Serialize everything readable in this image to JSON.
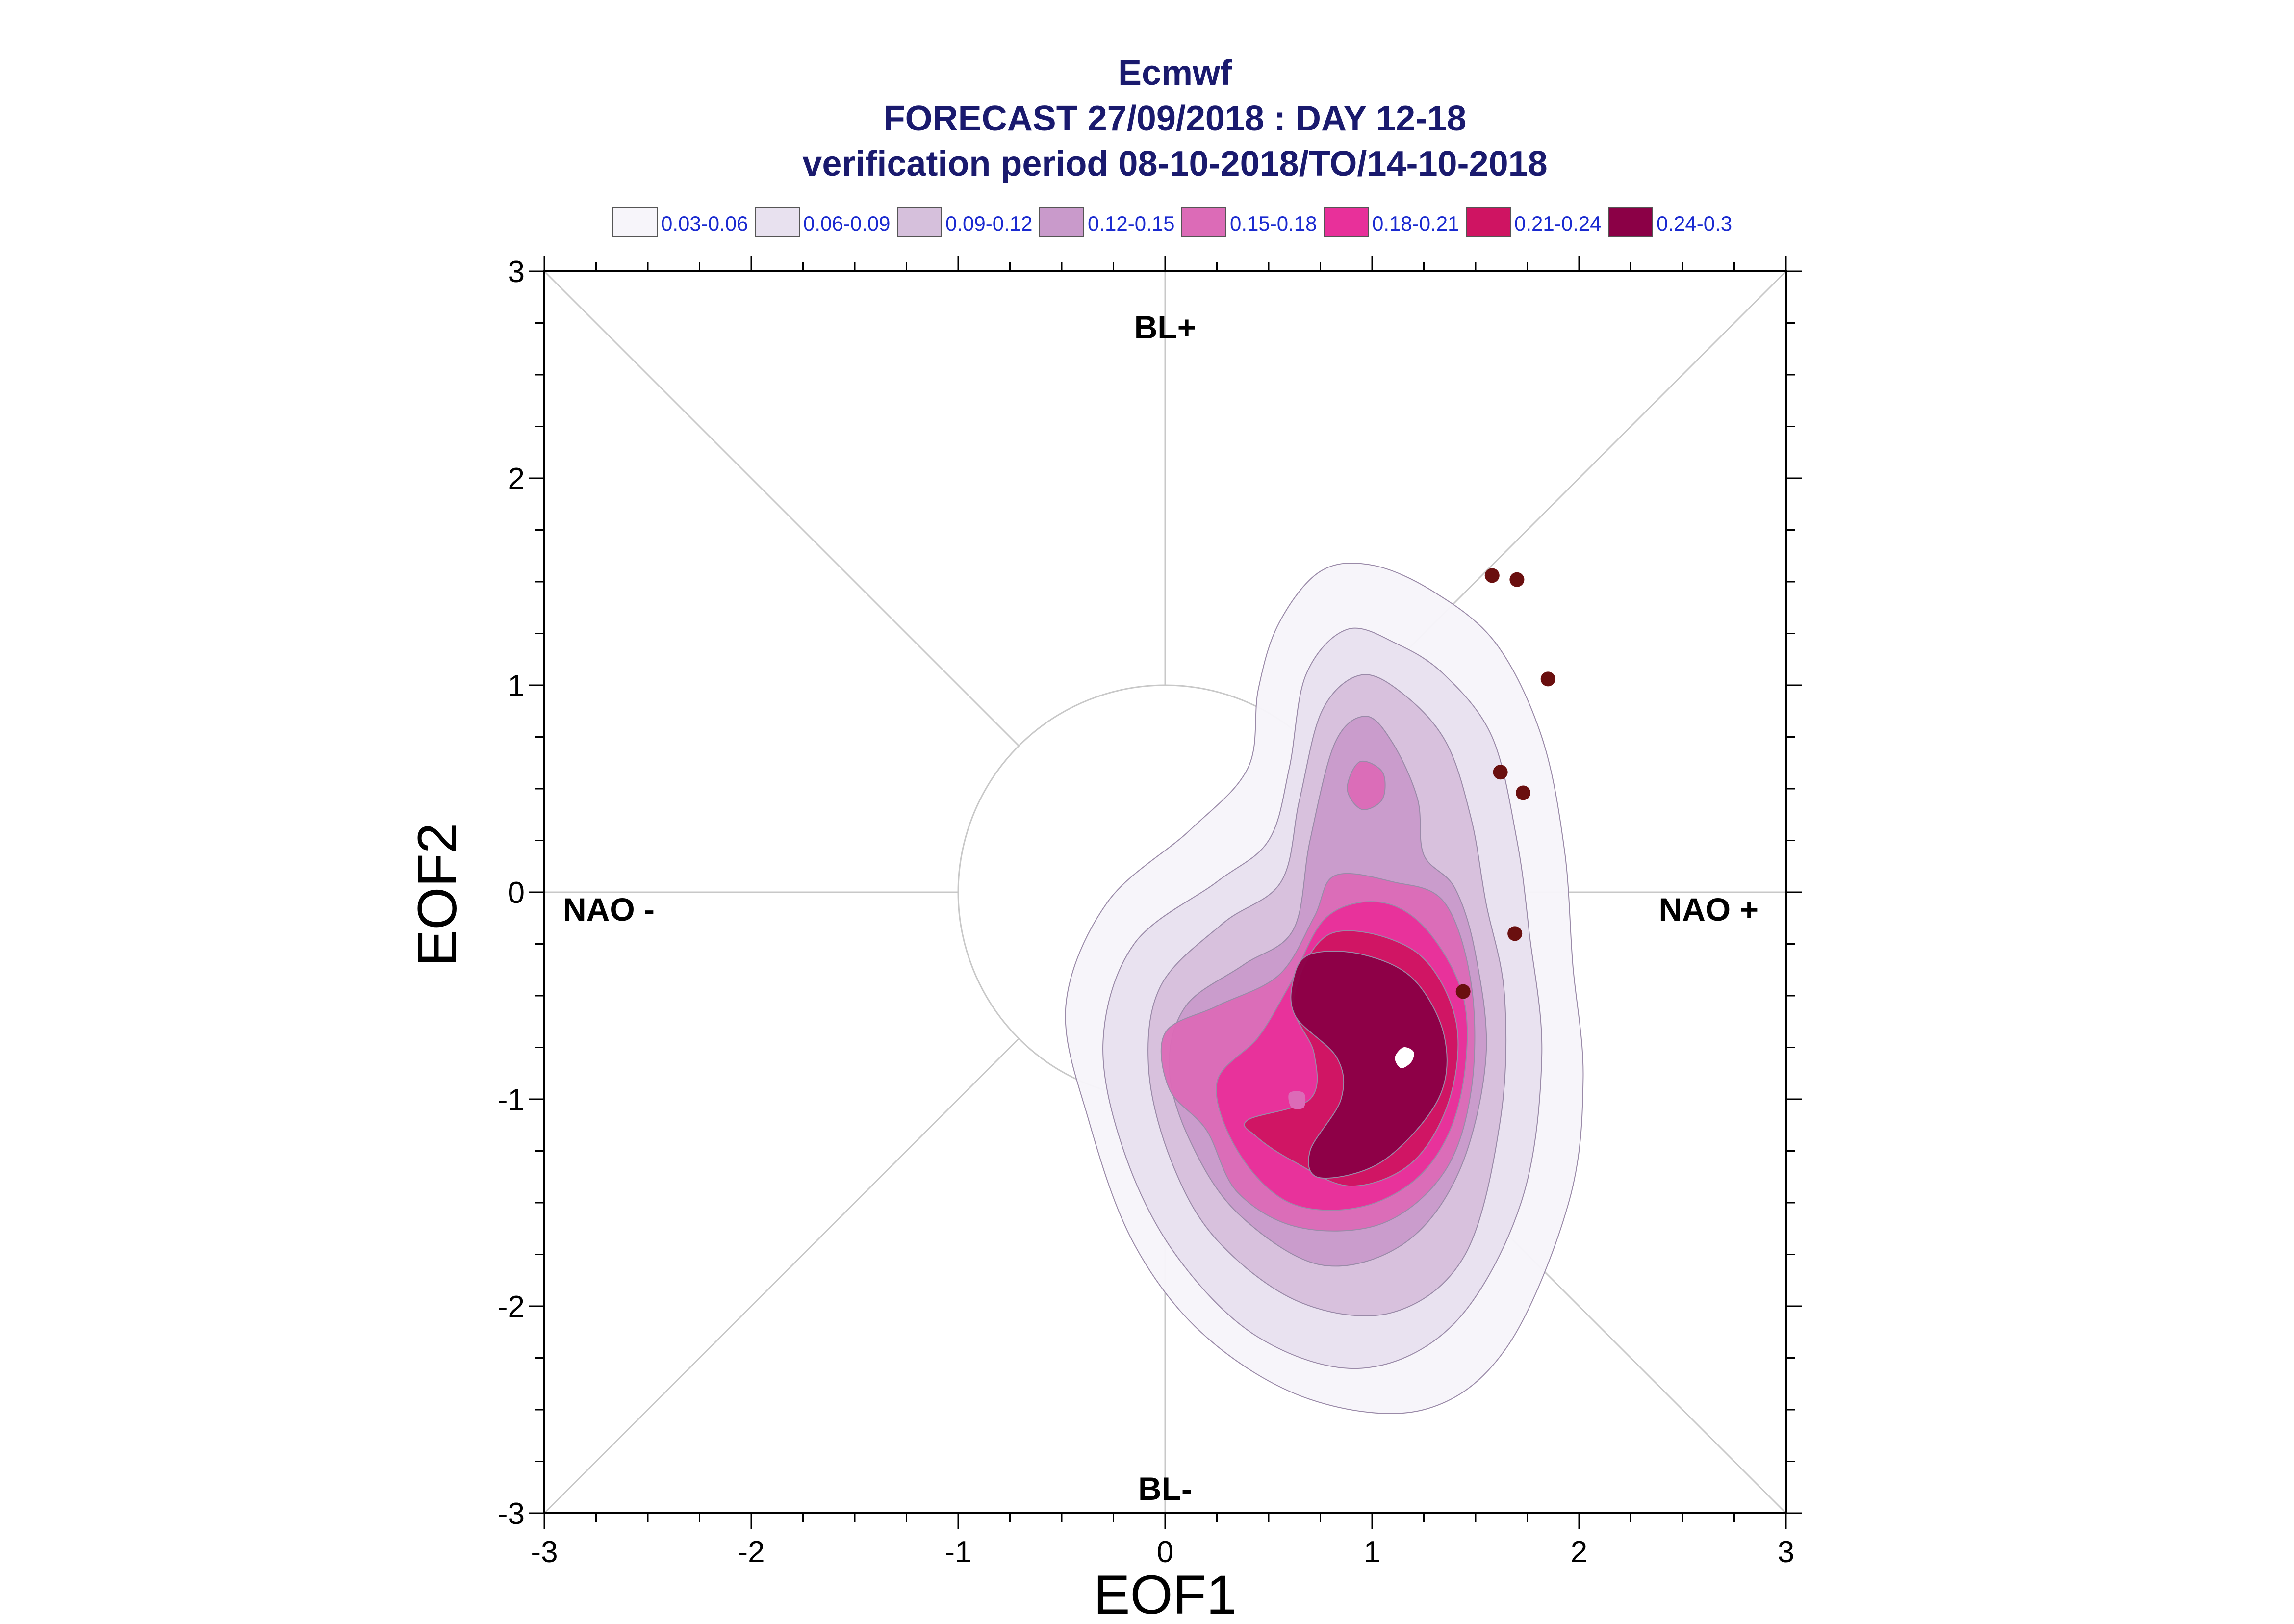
{
  "chart_data": {
    "type": "contour",
    "title_lines": [
      "Ecmwf",
      "FORECAST 27/09/2018 : DAY 12-18",
      "verification period 08-10-2018/TO/14-10-2018"
    ],
    "xlabel": "EOF1",
    "ylabel": "EOF2",
    "xlim": [
      -3,
      3
    ],
    "ylim": [
      -3,
      3
    ],
    "x_ticks": [
      "-3",
      "-2",
      "-1",
      "0",
      "1",
      "2",
      "3"
    ],
    "y_ticks": [
      "3",
      "2",
      "1",
      "0",
      "-1",
      "-2",
      "-3"
    ],
    "region_labels": {
      "top": "BL+",
      "bottom": "BL-",
      "left": "NAO -",
      "right": "NAO +"
    },
    "legend": [
      {
        "label": "0.03-0.06",
        "color": "#f7f5fa"
      },
      {
        "label": "0.06-0.09",
        "color": "#e8e1ef"
      },
      {
        "label": "0.09-0.12",
        "color": "#d6c0dc"
      },
      {
        "label": "0.12-0.15",
        "color": "#c99acb"
      },
      {
        "label": "0.15-0.18",
        "color": "#dc6bb7"
      },
      {
        "label": "0.18-0.21",
        "color": "#e8309a"
      },
      {
        "label": "0.21-0.24",
        "color": "#cf1462"
      },
      {
        "label": "0.24-0.3",
        "color": "#8b0046"
      }
    ],
    "ensemble_points": [
      {
        "x": 1.58,
        "y": 1.53
      },
      {
        "x": 1.7,
        "y": 1.51
      },
      {
        "x": 1.85,
        "y": 1.03
      },
      {
        "x": 1.62,
        "y": 0.58
      },
      {
        "x": 1.73,
        "y": 0.48
      },
      {
        "x": 1.69,
        "y": -0.2
      },
      {
        "x": 1.44,
        "y": -0.48
      }
    ],
    "point_color": "#6a0f0f",
    "contours": [
      {
        "level": 0,
        "points": [
          [
            0.55,
            1.3
          ],
          [
            0.75,
            1.55
          ],
          [
            1.0,
            1.58
          ],
          [
            1.3,
            1.45
          ],
          [
            1.6,
            1.2
          ],
          [
            1.82,
            0.75
          ],
          [
            1.93,
            0.2
          ],
          [
            1.97,
            -0.35
          ],
          [
            2.02,
            -0.9
          ],
          [
            1.95,
            -1.5
          ],
          [
            1.65,
            -2.2
          ],
          [
            1.25,
            -2.5
          ],
          [
            0.7,
            -2.45
          ],
          [
            0.2,
            -2.15
          ],
          [
            -0.15,
            -1.7
          ],
          [
            -0.37,
            -1.1
          ],
          [
            -0.48,
            -0.55
          ],
          [
            -0.28,
            -0.05
          ],
          [
            0.12,
            0.3
          ],
          [
            0.4,
            0.6
          ],
          [
            0.45,
            0.98
          ]
        ]
      },
      {
        "level": 1,
        "points": [
          [
            0.68,
            1.05
          ],
          [
            0.88,
            1.27
          ],
          [
            1.12,
            1.2
          ],
          [
            1.35,
            1.05
          ],
          [
            1.58,
            0.75
          ],
          [
            1.7,
            0.25
          ],
          [
            1.76,
            -0.2
          ],
          [
            1.82,
            -0.8
          ],
          [
            1.72,
            -1.5
          ],
          [
            1.4,
            -2.08
          ],
          [
            0.95,
            -2.3
          ],
          [
            0.45,
            -2.15
          ],
          [
            0.05,
            -1.75
          ],
          [
            -0.2,
            -1.25
          ],
          [
            -0.3,
            -0.72
          ],
          [
            -0.15,
            -0.25
          ],
          [
            0.25,
            0.05
          ],
          [
            0.5,
            0.25
          ],
          [
            0.6,
            0.6
          ]
        ]
      },
      {
        "level": 2,
        "points": [
          [
            0.76,
            0.88
          ],
          [
            0.95,
            1.05
          ],
          [
            1.16,
            0.95
          ],
          [
            1.36,
            0.72
          ],
          [
            1.48,
            0.35
          ],
          [
            1.55,
            -0.05
          ],
          [
            1.64,
            -0.5
          ],
          [
            1.62,
            -1.1
          ],
          [
            1.45,
            -1.75
          ],
          [
            1.1,
            -2.03
          ],
          [
            0.65,
            -1.98
          ],
          [
            0.25,
            -1.68
          ],
          [
            0.03,
            -1.3
          ],
          [
            -0.08,
            -0.85
          ],
          [
            -0.02,
            -0.45
          ],
          [
            0.28,
            -0.15
          ],
          [
            0.56,
            0.05
          ],
          [
            0.65,
            0.45
          ]
        ]
      },
      {
        "level": 3,
        "points": [
          [
            0.82,
            0.72
          ],
          [
            0.97,
            0.85
          ],
          [
            1.1,
            0.72
          ],
          [
            1.22,
            0.45
          ],
          [
            1.25,
            0.18
          ],
          [
            1.4,
            0.02
          ],
          [
            1.5,
            -0.3
          ],
          [
            1.55,
            -0.8
          ],
          [
            1.42,
            -1.35
          ],
          [
            1.15,
            -1.7
          ],
          [
            0.75,
            -1.8
          ],
          [
            0.35,
            -1.55
          ],
          [
            0.12,
            -1.2
          ],
          [
            0.02,
            -0.85
          ],
          [
            0.1,
            -0.55
          ],
          [
            0.38,
            -0.35
          ],
          [
            0.62,
            -0.18
          ],
          [
            0.7,
            0.25
          ]
        ]
      },
      {
        "level": 4,
        "points": [
          [
            0.88,
            0.5
          ],
          [
            0.94,
            0.63
          ],
          [
            1.05,
            0.58
          ],
          [
            1.05,
            0.45
          ],
          [
            0.95,
            0.4
          ]
        ]
      },
      {
        "level": 4,
        "points": [
          [
            0.82,
            0.08
          ],
          [
            1.1,
            0.05
          ],
          [
            1.35,
            -0.05
          ],
          [
            1.48,
            -0.45
          ],
          [
            1.48,
            -0.95
          ],
          [
            1.35,
            -1.35
          ],
          [
            1.05,
            -1.6
          ],
          [
            0.65,
            -1.62
          ],
          [
            0.35,
            -1.45
          ],
          [
            0.2,
            -1.15
          ],
          [
            0.02,
            -0.95
          ],
          [
            0.0,
            -0.68
          ],
          [
            0.25,
            -0.55
          ],
          [
            0.55,
            -0.4
          ],
          [
            0.72,
            -0.12
          ]
        ]
      },
      {
        "level": 5,
        "points": [
          [
            0.78,
            -0.12
          ],
          [
            1.05,
            -0.05
          ],
          [
            1.28,
            -0.2
          ],
          [
            1.45,
            -0.55
          ],
          [
            1.42,
            -1.02
          ],
          [
            1.25,
            -1.35
          ],
          [
            0.95,
            -1.52
          ],
          [
            0.6,
            -1.5
          ],
          [
            0.35,
            -1.25
          ],
          [
            0.25,
            -0.92
          ],
          [
            0.45,
            -0.7
          ],
          [
            0.6,
            -0.45
          ]
        ]
      },
      {
        "level": 6,
        "points": [
          [
            0.8,
            -0.2
          ],
          [
            1.2,
            -0.28
          ],
          [
            1.4,
            -0.6
          ],
          [
            1.38,
            -0.98
          ],
          [
            1.2,
            -1.3
          ],
          [
            0.9,
            -1.42
          ],
          [
            0.62,
            -1.3
          ],
          [
            0.44,
            -1.18
          ],
          [
            0.4,
            -1.1
          ],
          [
            0.7,
            -1.0
          ],
          [
            0.72,
            -0.78
          ],
          [
            0.62,
            -0.52
          ]
        ]
      },
      {
        "level": 7,
        "points": [
          [
            0.7,
            -0.3
          ],
          [
            0.95,
            -0.3
          ],
          [
            1.2,
            -0.42
          ],
          [
            1.35,
            -0.7
          ],
          [
            1.32,
            -1.0
          ],
          [
            1.05,
            -1.3
          ],
          [
            0.75,
            -1.38
          ],
          [
            0.7,
            -1.25
          ],
          [
            0.85,
            -1.0
          ],
          [
            0.83,
            -0.8
          ],
          [
            0.63,
            -0.6
          ],
          [
            0.62,
            -0.42
          ]
        ]
      }
    ],
    "inner_markers": [
      {
        "points": [
          [
            1.15,
            -0.75
          ],
          [
            1.2,
            -0.77
          ],
          [
            1.19,
            -0.82
          ],
          [
            1.14,
            -0.85
          ],
          [
            1.11,
            -0.8
          ]
        ],
        "color": "#ffffff"
      },
      {
        "points": [
          [
            0.6,
            -0.97
          ],
          [
            0.67,
            -0.97
          ],
          [
            0.67,
            -1.04
          ],
          [
            0.61,
            -1.04
          ]
        ],
        "color": "#dc6bb7"
      }
    ],
    "reference_circle_radius": 1
  }
}
